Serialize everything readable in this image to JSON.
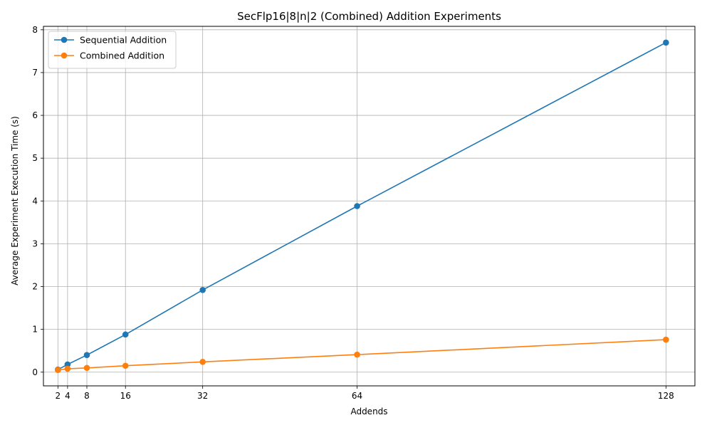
{
  "chart_data": {
    "type": "line",
    "title": "SecFlp16|8|n|2 (Combined) Addition Experiments",
    "xlabel": "Addends",
    "ylabel": "Average Experiment Execution Time (s)",
    "x": [
      2,
      4,
      8,
      16,
      32,
      64,
      128
    ],
    "x_ticks": [
      "2",
      "4",
      "8",
      "16",
      "32",
      "64",
      "128"
    ],
    "y_ticks": [
      "0",
      "1",
      "2",
      "3",
      "4",
      "5",
      "6",
      "7",
      "8"
    ],
    "xlim": [
      -1,
      134
    ],
    "ylim": [
      -0.32,
      8.08
    ],
    "grid": true,
    "legend_position": "top-left",
    "series": [
      {
        "name": "Sequential Addition",
        "color": "#1f77b4",
        "values": [
          0.06,
          0.18,
          0.4,
          0.88,
          1.92,
          3.88,
          7.7
        ]
      },
      {
        "name": "Combined Addition",
        "color": "#ff7f0e",
        "values": [
          0.05,
          0.08,
          0.1,
          0.15,
          0.24,
          0.41,
          0.76
        ]
      }
    ]
  }
}
